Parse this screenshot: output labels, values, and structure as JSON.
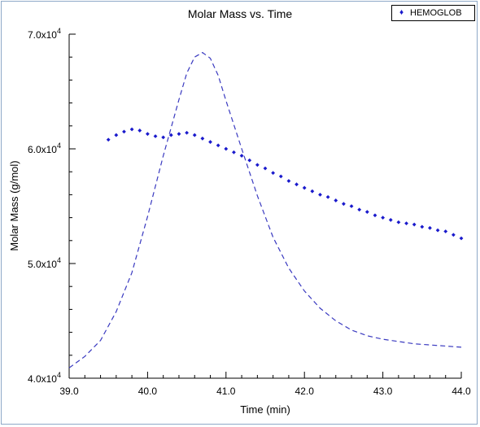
{
  "chart_data": {
    "type": "scatter",
    "title": "Molar Mass vs. Time",
    "xlabel": "Time (min)",
    "ylabel": "Molar Mass (g/mol)",
    "xlim": [
      39.0,
      44.0
    ],
    "ylim": [
      40000,
      70000
    ],
    "x_ticks": [
      "39.0",
      "40.0",
      "41.0",
      "42.0",
      "43.0",
      "44.0"
    ],
    "y_ticks": [
      {
        "value": 40000,
        "mantissa": "4.0x10",
        "exp": "4"
      },
      {
        "value": 50000,
        "mantissa": "5.0x10",
        "exp": "4"
      },
      {
        "value": 60000,
        "mantissa": "6.0x10",
        "exp": "4"
      },
      {
        "value": 70000,
        "mantissa": "7.0x10",
        "exp": "4"
      }
    ],
    "grid": false,
    "legend_position": "top-right",
    "series": [
      {
        "name": "HEMOGLOB",
        "kind": "scatter",
        "color": "#1a1acc",
        "x": [
          39.5,
          39.6,
          39.7,
          39.8,
          39.9,
          40.0,
          40.1,
          40.2,
          40.3,
          40.4,
          40.5,
          40.6,
          40.7,
          40.8,
          40.9,
          41.0,
          41.1,
          41.2,
          41.3,
          41.4,
          41.5,
          41.6,
          41.7,
          41.8,
          41.9,
          42.0,
          42.1,
          42.2,
          42.3,
          42.4,
          42.5,
          42.6,
          42.7,
          42.8,
          42.9,
          43.0,
          43.1,
          43.2,
          43.3,
          43.4,
          43.5,
          43.6,
          43.7,
          43.8,
          43.9,
          44.0
        ],
        "y": [
          60800,
          61200,
          61500,
          61700,
          61600,
          61300,
          61100,
          61000,
          61200,
          61300,
          61400,
          61200,
          60900,
          60600,
          60300,
          60000,
          59700,
          59400,
          59000,
          58600,
          58300,
          57900,
          57600,
          57200,
          56900,
          56600,
          56300,
          56000,
          55800,
          55500,
          55200,
          55000,
          54700,
          54500,
          54200,
          54000,
          53800,
          53600,
          53500,
          53400,
          53200,
          53100,
          52900,
          52800,
          52500,
          52200
        ]
      },
      {
        "name": "",
        "kind": "dashed-line",
        "color": "#3a3ac0",
        "x": [
          39.0,
          39.2,
          39.4,
          39.6,
          39.8,
          40.0,
          40.2,
          40.4,
          40.5,
          40.6,
          40.7,
          40.8,
          40.9,
          41.0,
          41.2,
          41.4,
          41.6,
          41.8,
          42.0,
          42.2,
          42.4,
          42.6,
          42.8,
          43.0,
          43.2,
          43.4,
          43.6,
          43.8,
          44.0
        ],
        "y": [
          40900,
          41900,
          43300,
          45800,
          49200,
          54100,
          59400,
          64300,
          66600,
          68000,
          68400,
          67900,
          66400,
          64200,
          60000,
          55900,
          52300,
          49600,
          47600,
          46100,
          45000,
          44200,
          43700,
          43400,
          43200,
          43000,
          42900,
          42800,
          42700
        ]
      }
    ]
  }
}
